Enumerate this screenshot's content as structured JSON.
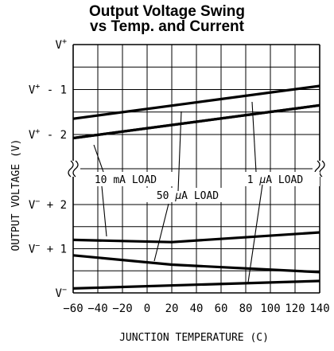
{
  "title": {
    "line1": "Output Voltage Swing",
    "line2": "vs Temp. and Current"
  },
  "chart_data": {
    "type": "line",
    "xlabel": "JUNCTION TEMPERATURE (C)",
    "ylabel": "OUTPUT VOLTAGE (V)",
    "xlim": [
      -60,
      140
    ],
    "x_ticks": [
      -60,
      -40,
      -20,
      0,
      20,
      40,
      60,
      80,
      100,
      120,
      140
    ],
    "y_ticks": [
      {
        "base": "V",
        "sup": "+",
        "suffix": ""
      },
      {
        "base": "V",
        "sup": "+",
        "suffix": " - 1"
      },
      {
        "base": "V",
        "sup": "+",
        "suffix": " - 2"
      },
      {
        "base": "V",
        "sup": "−",
        "suffix": " + 2"
      },
      {
        "base": "V",
        "sup": "−",
        "suffix": " + 1"
      },
      {
        "base": "V",
        "sup": "−",
        "suffix": ""
      }
    ],
    "axis_break": "between V+ - 2 and V- + 2",
    "grid": true,
    "annotations": [
      {
        "text_main": "10 mA LOAD",
        "text_mu": "",
        "text_rest": ""
      },
      {
        "text_main": "50 ",
        "text_mu": "μ",
        "text_rest": "A LOAD"
      },
      {
        "text_main": "1 ",
        "text_mu": "μ",
        "text_rest": "A LOAD"
      }
    ],
    "series": [
      {
        "region": "upper (V-out relative to V+)",
        "load": "1 µA",
        "x": [
          -60,
          140
        ],
        "y": [
          -1.65,
          -0.92
        ]
      },
      {
        "region": "upper (V-out relative to V+)",
        "load": "50 µA",
        "x": [
          -60,
          140
        ],
        "y": [
          -2.08,
          -1.35
        ]
      },
      {
        "region": "upper (V-out relative to V+)",
        "load": "10 mA",
        "x": [
          -60,
          140
        ],
        "y": [
          -2.08,
          -1.35
        ]
      },
      {
        "region": "lower (V-out relative to V-)",
        "load": "10 mA",
        "x": [
          -60,
          20,
          140
        ],
        "y": [
          1.2,
          1.15,
          1.37
        ]
      },
      {
        "region": "lower (V-out relative to V-)",
        "load": "50 µA",
        "x": [
          -60,
          20,
          140
        ],
        "y": [
          0.85,
          0.64,
          0.47
        ]
      },
      {
        "region": "lower (V-out relative to V-)",
        "load": "1 µA",
        "x": [
          -60,
          140
        ],
        "y": [
          0.1,
          0.27
        ]
      }
    ]
  }
}
